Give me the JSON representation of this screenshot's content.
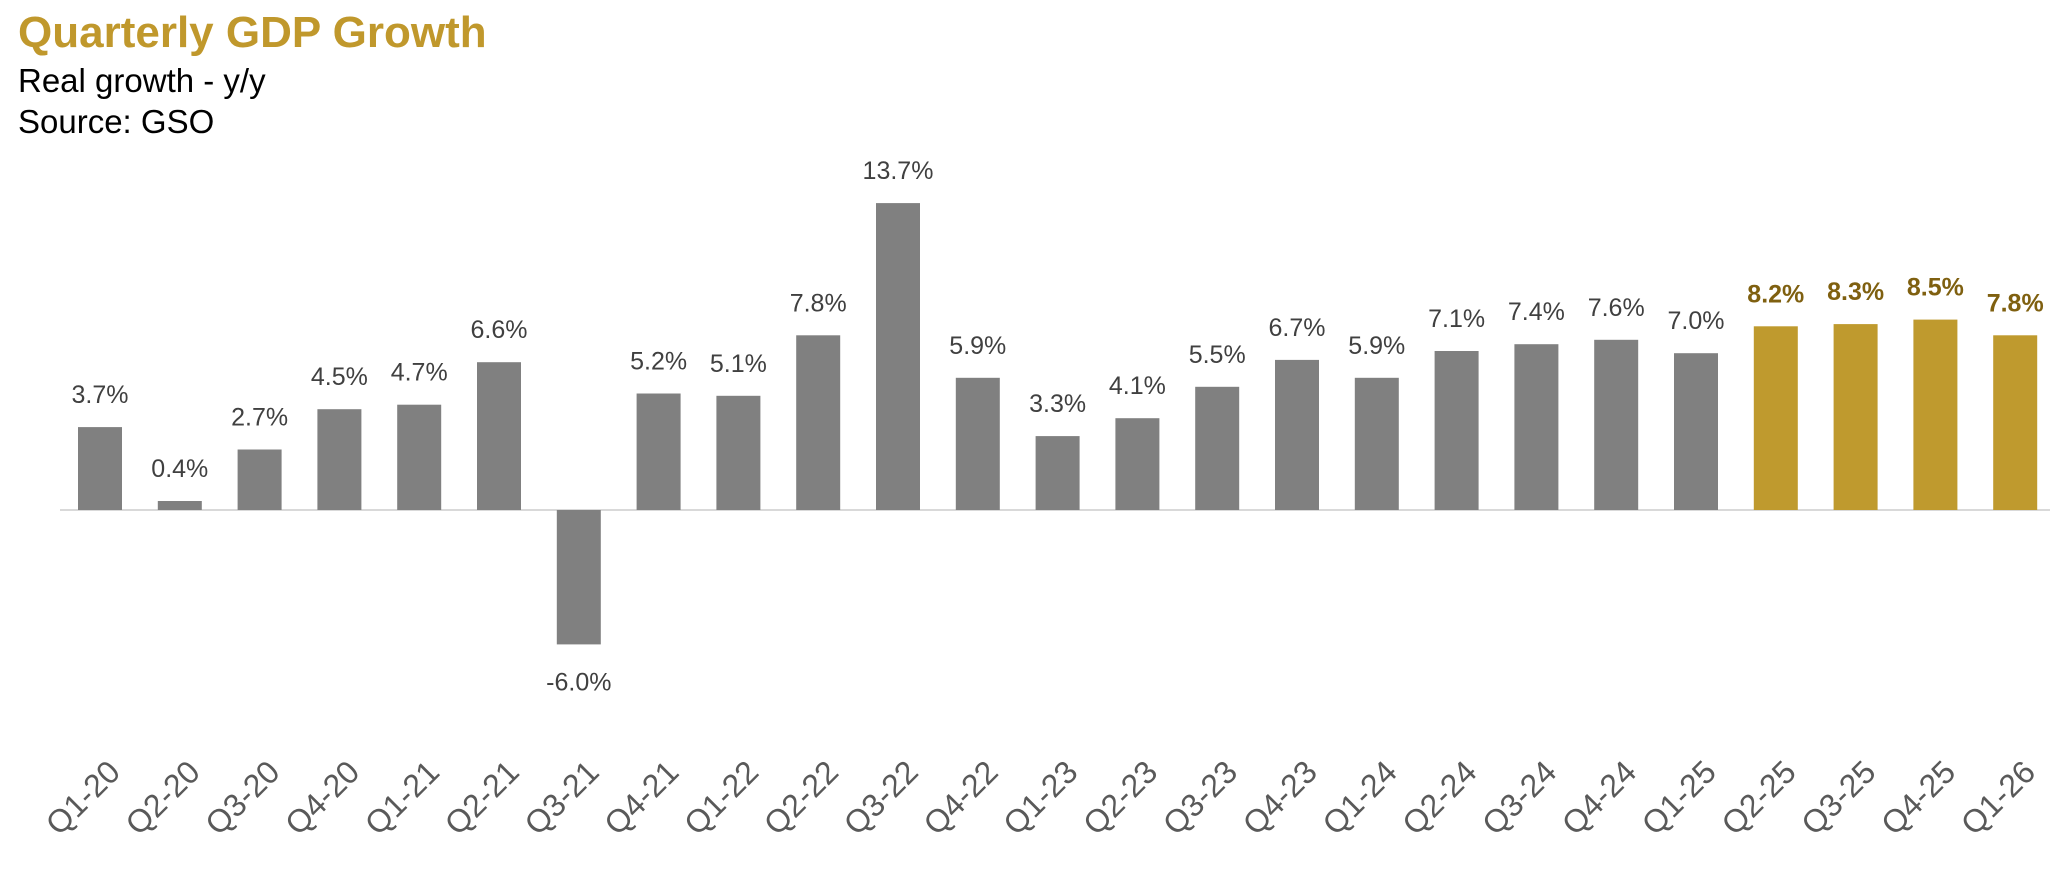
{
  "header": {
    "title": "Quarterly GDP Growth",
    "subtitle": "Real growth - y/y",
    "source": "Source: GSO"
  },
  "colors": {
    "title": "#c0982c",
    "bar_actual": "#808080",
    "bar_highlight": "#bf9a2e",
    "label_actual": "#404040",
    "label_highlight": "#7f6010",
    "axis_tick": "#595959",
    "baseline": "#d9d9d9"
  },
  "chart_data": {
    "type": "bar",
    "title": "Quarterly GDP Growth",
    "subtitle": "Real growth - y/y",
    "ylabel": "",
    "xlabel": "",
    "ylim": [
      -6.0,
      13.7
    ],
    "grid": false,
    "legend": "none",
    "categories": [
      "Q1-20",
      "Q2-20",
      "Q3-20",
      "Q4-20",
      "Q1-21",
      "Q2-21",
      "Q3-21",
      "Q4-21",
      "Q1-22",
      "Q2-22",
      "Q3-22",
      "Q4-22",
      "Q1-23",
      "Q2-23",
      "Q3-23",
      "Q4-23",
      "Q1-24",
      "Q2-24",
      "Q3-24",
      "Q4-24",
      "Q1-25",
      "Q2-25",
      "Q3-25",
      "Q4-25",
      "Q1-26"
    ],
    "values": [
      3.7,
      0.4,
      2.7,
      4.5,
      4.7,
      6.6,
      -6.0,
      5.2,
      5.1,
      7.8,
      13.7,
      5.9,
      3.3,
      4.1,
      5.5,
      6.7,
      5.9,
      7.1,
      7.4,
      7.6,
      7.0,
      8.2,
      8.3,
      8.5,
      7.8
    ],
    "labels": [
      "3.7%",
      "0.4%",
      "2.7%",
      "4.5%",
      "4.7%",
      "6.6%",
      "-6.0%",
      "5.2%",
      "5.1%",
      "7.8%",
      "13.7%",
      "5.9%",
      "3.3%",
      "4.1%",
      "5.5%",
      "6.7%",
      "5.9%",
      "7.1%",
      "7.4%",
      "7.6%",
      "7.0%",
      "8.2%",
      "8.3%",
      "8.5%",
      "7.8%"
    ],
    "highlighted": [
      false,
      false,
      false,
      false,
      false,
      false,
      false,
      false,
      false,
      false,
      false,
      false,
      false,
      false,
      false,
      false,
      false,
      false,
      false,
      false,
      false,
      true,
      true,
      true,
      true
    ]
  }
}
